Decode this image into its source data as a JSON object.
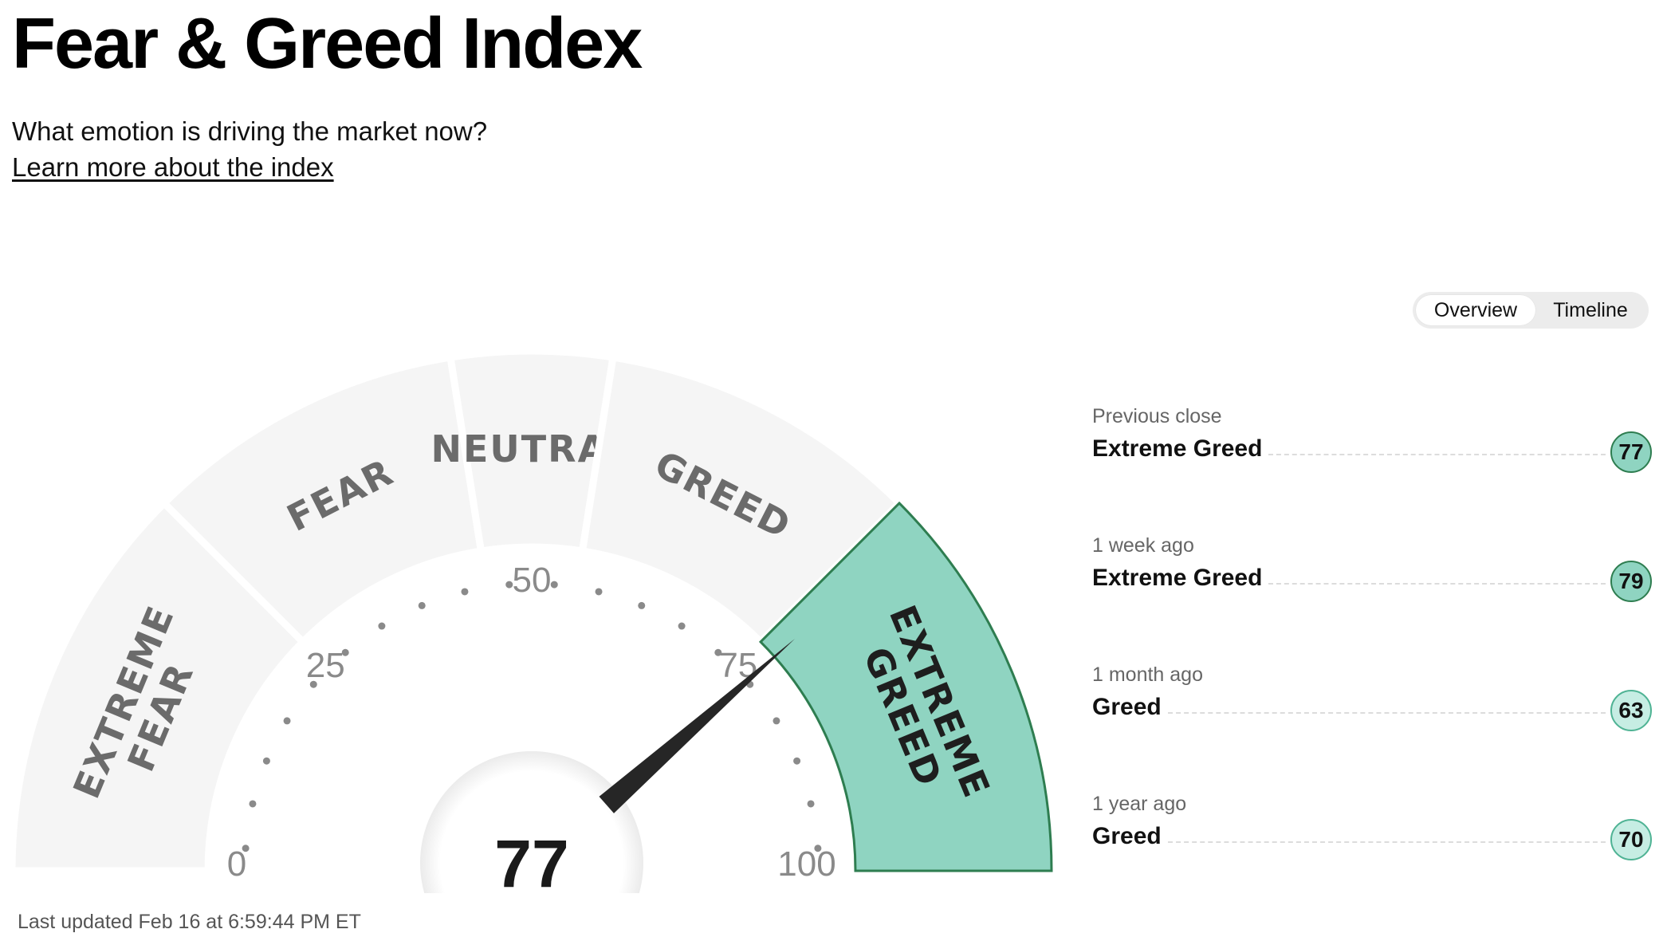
{
  "header": {
    "title": "Fear & Greed Index",
    "subtitle": "What emotion is driving the market now?",
    "learn_link": "Learn more about the index"
  },
  "toggle": {
    "overview_label": "Overview",
    "timeline_label": "Timeline"
  },
  "gauge": {
    "value": 77,
    "min": 0,
    "max": 100,
    "scale_labels": [
      "0",
      "25",
      "50",
      "75",
      "100"
    ],
    "segments": [
      {
        "lines": [
          "EXTREME",
          "FEAR"
        ],
        "from": 0,
        "to": 25,
        "active": false
      },
      {
        "lines": [
          "FEAR"
        ],
        "from": 25,
        "to": 45,
        "active": false
      },
      {
        "lines": [
          "NEUTRAL"
        ],
        "from": 45,
        "to": 55,
        "active": false
      },
      {
        "lines": [
          "GREED"
        ],
        "from": 55,
        "to": 75,
        "active": false
      },
      {
        "lines": [
          "EXTREME",
          "GREED"
        ],
        "from": 75,
        "to": 100,
        "active": true
      }
    ],
    "colors": {
      "inactive_segment": "#f5f5f5",
      "inactive_label": "#6b6b6b",
      "active_segment": "#8fd4c1",
      "active_border": "#2e7d50",
      "active_label": "#1e1e1e",
      "needle": "#262626",
      "dots": "#8a8a8a"
    }
  },
  "last_updated": "Last updated Feb 16 at 6:59:44 PM ET",
  "history": [
    {
      "label": "Previous close",
      "rating": "Extreme Greed",
      "score": "77",
      "fill": "#8fd4c1",
      "border": "#2e7d50"
    },
    {
      "label": "1 week ago",
      "rating": "Extreme Greed",
      "score": "79",
      "fill": "#8fd4c1",
      "border": "#2e7d50"
    },
    {
      "label": "1 month ago",
      "rating": "Greed",
      "score": "63",
      "fill": "#c6ede3",
      "border": "#4fb394"
    },
    {
      "label": "1 year ago",
      "rating": "Greed",
      "score": "70",
      "fill": "#c6ede3",
      "border": "#4fb394"
    }
  ]
}
